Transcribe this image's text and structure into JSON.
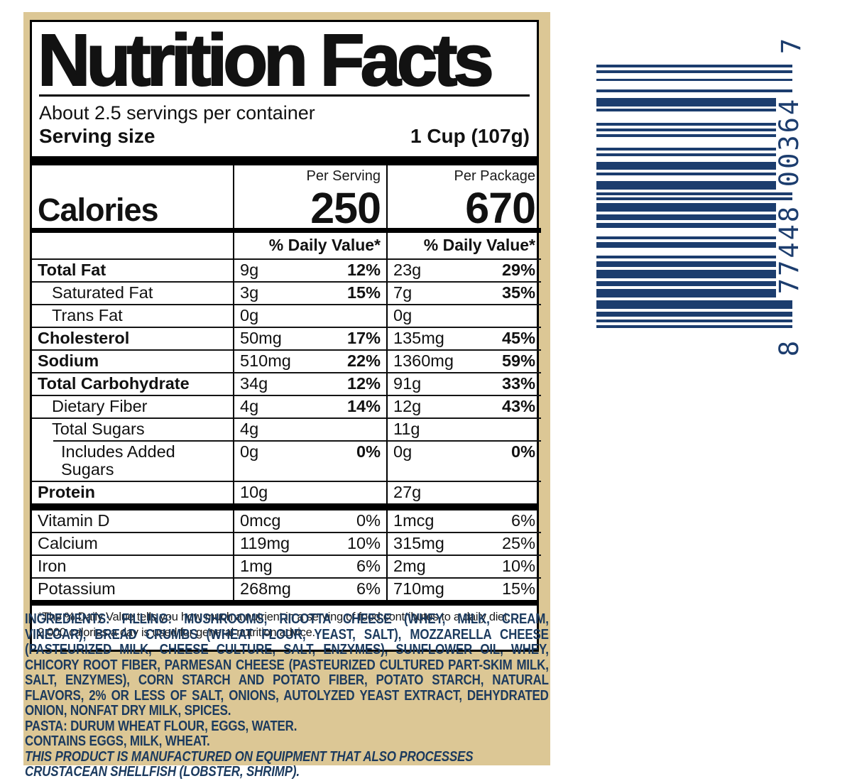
{
  "colors": {
    "package_tan": "#dcc795",
    "ink_black": "#121212",
    "ingredients_navy": "#1b3a5e",
    "barcode_navy": "#1c3d6e",
    "panel_white": "#ffffff"
  },
  "label": {
    "title": "Nutrition Facts",
    "servings_per_container": "About 2.5 servings per container",
    "serving_size_label": "Serving size",
    "serving_size_value": "1 Cup (107g)",
    "columns": {
      "per_serving": "Per Serving",
      "per_package": "Per Package"
    },
    "calories": {
      "label": "Calories",
      "per_serving": "250",
      "per_package": "670"
    },
    "daily_value_header": "% Daily Value*",
    "rows": [
      {
        "name": "Total Fat",
        "bold": true,
        "indent": 0,
        "serving_amount": "9g",
        "serving_dv": "12%",
        "package_amount": "23g",
        "package_dv": "29%"
      },
      {
        "name": "Saturated Fat",
        "bold": false,
        "indent": 1,
        "serving_amount": "3g",
        "serving_dv": "15%",
        "package_amount": "7g",
        "package_dv": "35%"
      },
      {
        "name": "Trans Fat",
        "bold": false,
        "indent": 1,
        "serving_amount": "0g",
        "serving_dv": "",
        "package_amount": "0g",
        "package_dv": ""
      },
      {
        "name": "Cholesterol",
        "bold": true,
        "indent": 0,
        "serving_amount": "50mg",
        "serving_dv": "17%",
        "package_amount": "135mg",
        "package_dv": "45%"
      },
      {
        "name": "Sodium",
        "bold": true,
        "indent": 0,
        "serving_amount": "510mg",
        "serving_dv": "22%",
        "package_amount": "1360mg",
        "package_dv": "59%"
      },
      {
        "name": "Total Carbohydrate",
        "bold": true,
        "indent": 0,
        "serving_amount": "34g",
        "serving_dv": "12%",
        "package_amount": "91g",
        "package_dv": "33%"
      },
      {
        "name": "Dietary Fiber",
        "bold": false,
        "indent": 1,
        "serving_amount": "4g",
        "serving_dv": "14%",
        "package_amount": "12g",
        "package_dv": "43%"
      },
      {
        "name": "Total Sugars",
        "bold": false,
        "indent": 1,
        "serving_amount": "4g",
        "serving_dv": "",
        "package_amount": "11g",
        "package_dv": ""
      },
      {
        "name": "Includes Added Sugars",
        "bold": false,
        "indent": 2,
        "serving_amount": "0g",
        "serving_dv": "0%",
        "package_amount": "0g",
        "package_dv": "0%"
      },
      {
        "name": "Protein",
        "bold": true,
        "indent": 0,
        "serving_amount": "10g",
        "serving_dv": "",
        "package_amount": "27g",
        "package_dv": ""
      }
    ],
    "vitamins": [
      {
        "name": "Vitamin D",
        "serving_amount": "0mcg",
        "serving_dv": "0%",
        "package_amount": "1mcg",
        "package_dv": "6%"
      },
      {
        "name": "Calcium",
        "serving_amount": "119mg",
        "serving_dv": "10%",
        "package_amount": "315mg",
        "package_dv": "25%"
      },
      {
        "name": "Iron",
        "serving_amount": "1mg",
        "serving_dv": "6%",
        "package_amount": "2mg",
        "package_dv": "10%"
      },
      {
        "name": "Potassium",
        "serving_amount": "268mg",
        "serving_dv": "6%",
        "package_amount": "710mg",
        "package_dv": "15%"
      }
    ],
    "footnote": "*The % Daily Value tells you how much a nutrient in a serving of food contributes to a daily diet. 2,000 calories a day is used for general nutrition advice."
  },
  "ingredients": {
    "heading": "INGREDIENTS:",
    "filling_label": "FILLING:",
    "filling_text": "MUSHROOMS, RICOTTA CHEESE (WHEY, MILK, CREAM, VINEGAR), BREAD CRUMBS (WHEAT FLOUR, YEAST, SALT), MOZZARELLA CHEESE (PASTEURIZED MILK, CHEESE CULTURE, SALT, ENZYMES), SUNFLOWER OIL, WHEY, CHICORY ROOT FIBER, PARMESAN CHEESE (PASTEURIZED CULTURED PART-SKIM MILK, SALT, ENZYMES), CORN STARCH AND POTATO FIBER, POTATO STARCH, NATURAL FLAVORS, 2% OR LESS OF SALT, ONIONS, AUTOLYZED YEAST EXTRACT, DEHYDRATED ONION, NONFAT DRY MILK, SPICES.",
    "pasta_label": "PASTA:",
    "pasta_text": "DURUM WHEAT FLOUR, EGGS, WATER.",
    "contains": "CONTAINS EGGS, MILK, WHEAT.",
    "allergen_warning": "THIS PRODUCT IS MANUFACTURED ON EQUIPMENT THAT ALSO PROCESSES CRUSTACEAN SHELLFISH (LOBSTER, SHRIMP)."
  },
  "barcode": {
    "upc_display": "8 77448 00364 7",
    "number_system_digit": "8",
    "left_digits": "77448",
    "right_digits": "00364",
    "check_digit": "7",
    "pattern": "10101101110111011011101101000110100011011011101010111001011100101000010101000010111001000100101"
  }
}
